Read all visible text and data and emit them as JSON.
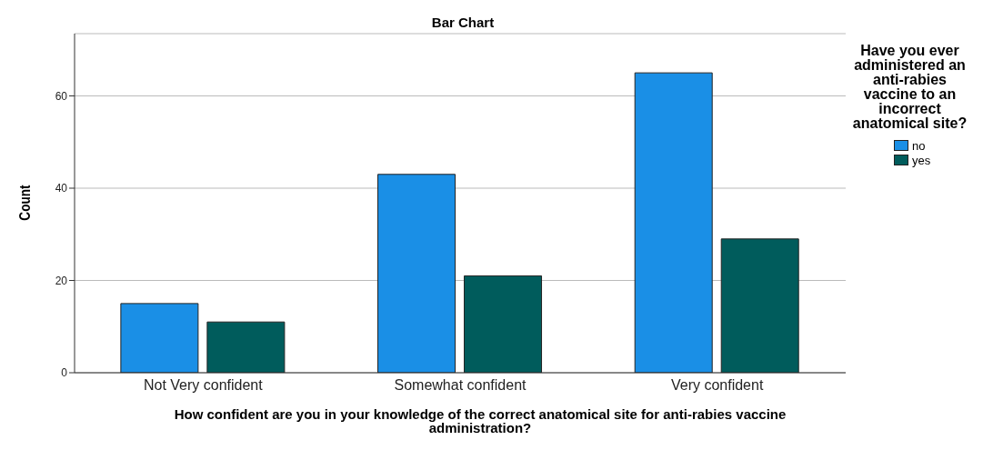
{
  "chart_data": {
    "type": "bar",
    "title": "Bar Chart",
    "xlabel": "How confident are you in your knowledge of the correct anatomical site for anti-rabies vaccine administration?",
    "ylabel": "Count",
    "legend_title": "Have you ever administered an anti-rabies vaccine to an incorrect anatomical site?",
    "categories": [
      "Not Very confident",
      "Somewhat confident",
      "Very confident"
    ],
    "series": [
      {
        "name": "no",
        "color": "#1a8fe6",
        "values": [
          15,
          43,
          65
        ]
      },
      {
        "name": "yes",
        "color": "#005c5c",
        "values": [
          11,
          21,
          29
        ]
      }
    ],
    "ylim": [
      0,
      73.5
    ],
    "yticks": [
      0,
      20,
      40,
      60
    ],
    "grid": "y",
    "legend": "top right"
  }
}
